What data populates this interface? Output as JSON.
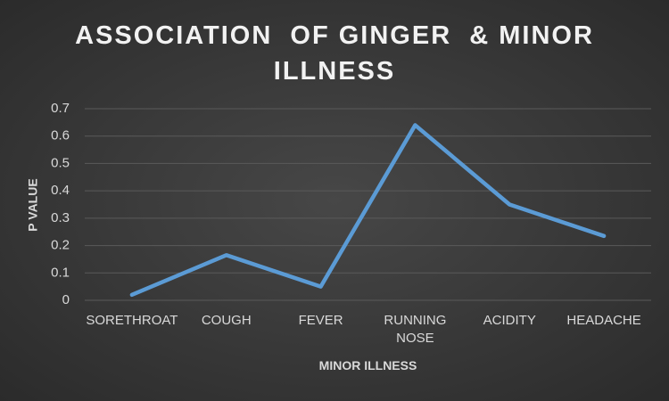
{
  "chart_data": {
    "type": "line",
    "title": "ASSOCIATION  OF GINGER  & MINOR ILLNESS",
    "x_label": "MINOR ILLNESS",
    "y_label": "P VALUE",
    "categories": [
      "SORETHROAT",
      "COUGH",
      "FEVER",
      "RUNNING NOSE",
      "ACIDITY",
      "HEADACHE"
    ],
    "values": [
      0.02,
      0.165,
      0.05,
      0.64,
      0.35,
      0.235
    ],
    "color": "#5b9bd5",
    "ylim": [
      0,
      0.7
    ],
    "yticks": [
      0,
      0.1,
      0.2,
      0.3,
      0.4,
      0.5,
      0.6,
      0.7
    ],
    "grid": true
  }
}
